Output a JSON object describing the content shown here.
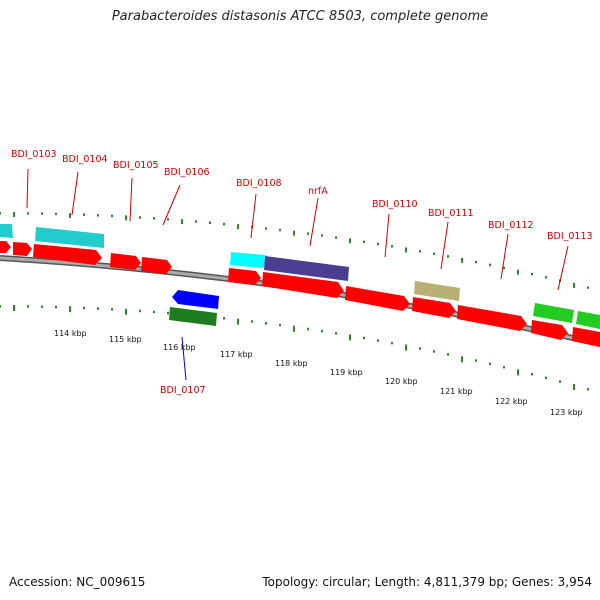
{
  "title": "Parabacteroides distasonis ATCC 8503, complete genome",
  "accession": "Accession: NC_009615",
  "stats": "Topology: circular; Length: 4,811,379 bp; Genes: 3,954",
  "scale_labels": [
    "114 kbp",
    "115 kbp",
    "116 kbp",
    "117 kbp",
    "118 kbp",
    "119 kbp",
    "120 kbp",
    "121 kbp",
    "122 kbp",
    "123 kbp"
  ],
  "gene_labels": [
    {
      "id": "BDI_0103",
      "color": "#cc0000"
    },
    {
      "id": "BDI_0104",
      "color": "#cc0000"
    },
    {
      "id": "BDI_0105",
      "color": "#cc0000"
    },
    {
      "id": "BDI_0106",
      "color": "#cc0000"
    },
    {
      "id": "BDI_0108",
      "color": "#cc0000"
    },
    {
      "id": "nrfA",
      "color": "#cc0000"
    },
    {
      "id": "BDI_0110",
      "color": "#cc0000"
    },
    {
      "id": "BDI_0111",
      "color": "#cc0000"
    },
    {
      "id": "BDI_0112",
      "color": "#cc0000"
    },
    {
      "id": "BDI_0113",
      "color": "#cc0000"
    },
    {
      "id": "BDI_0107",
      "color": "#0000cc"
    }
  ],
  "colors": {
    "cds": "#ff0000",
    "cog_cyan": "#22cccc",
    "cog_lightcyan": "#00ffff",
    "cog_purple": "#4b3d8f",
    "cog_khaki": "#b8b070",
    "cog_green": "#22cc22",
    "reverse_cds": "#0000ff",
    "reverse_cog": "#1e7d1e",
    "tick": "#2a8a2a",
    "backbone": "#888888"
  }
}
